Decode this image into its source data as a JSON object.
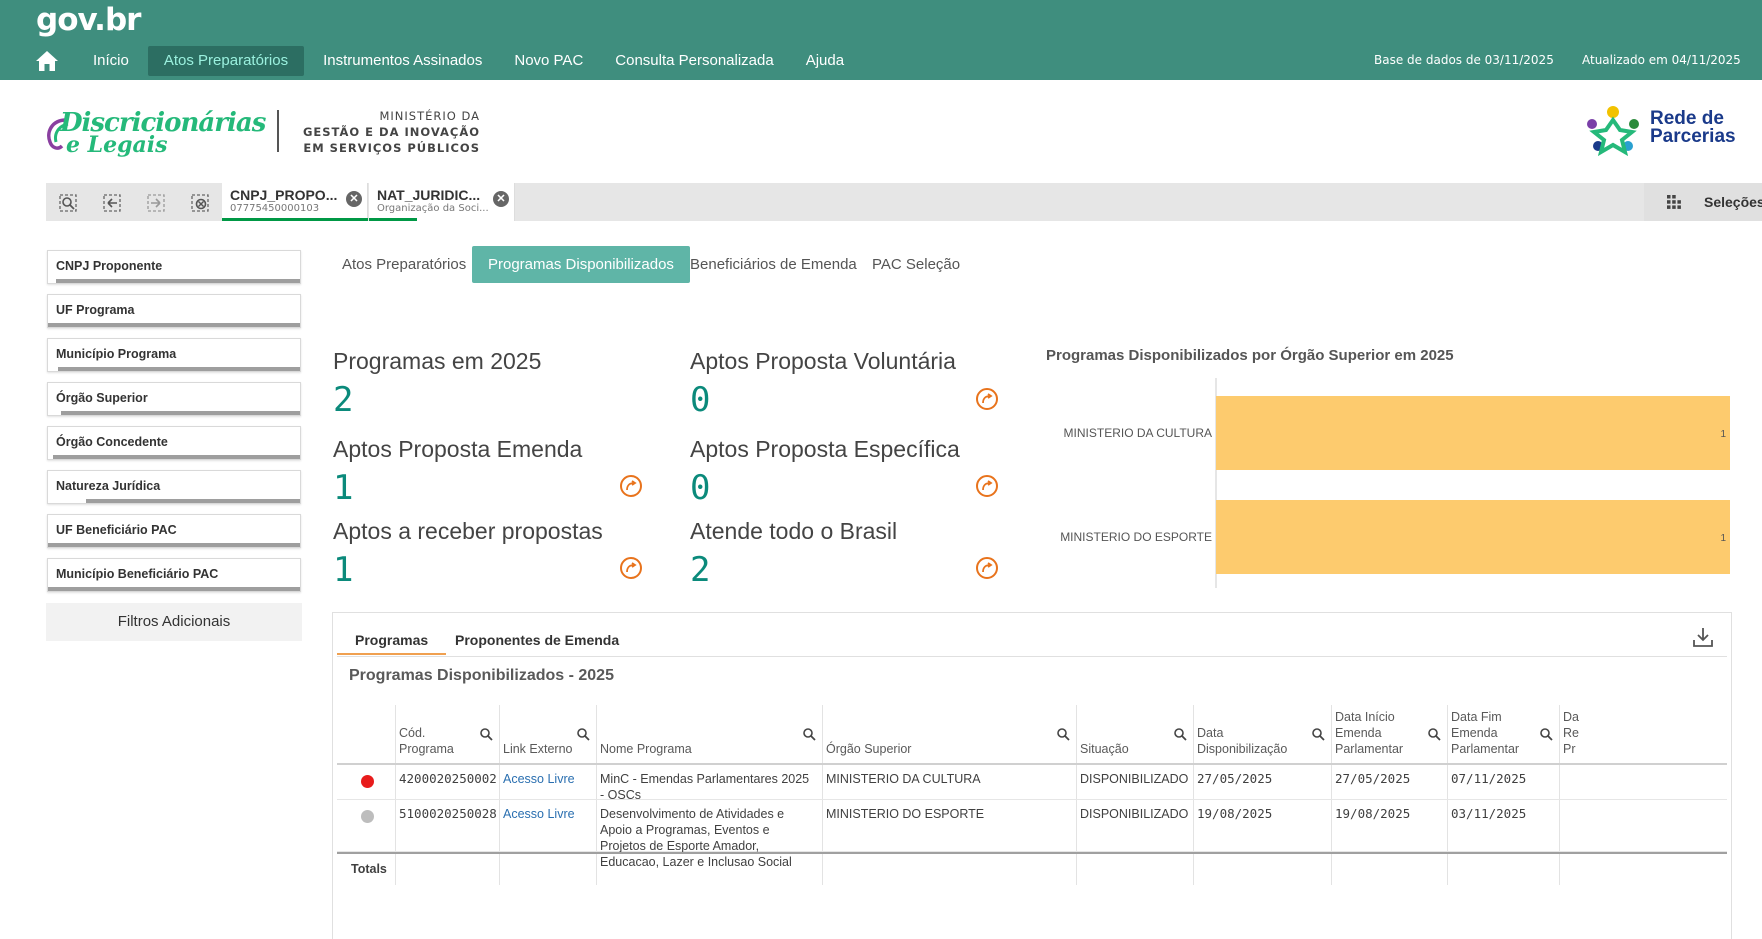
{
  "topbar": {
    "brand": "gov.br",
    "nav": [
      "Início",
      "Atos Preparatórios",
      "Instrumentos Assinados",
      "Novo PAC",
      "Consulta Personalizada",
      "Ajuda"
    ],
    "active_nav": 1,
    "db_date": "Base de dados de 03/11/2025",
    "updated": "Atualizado em 04/11/2025"
  },
  "header": {
    "logo_line1": "Discricionárias",
    "logo_line2": "e Legais",
    "ministry_line1": "MINISTÉRIO DA",
    "ministry_line2": "GESTÃO E DA INOVAÇÃO",
    "ministry_line3": "EM SERVIÇOS PÚBLICOS",
    "partner_line1": "Rede de",
    "partner_line2": "Parcerias"
  },
  "selection_bar": {
    "chips": [
      {
        "title": "CNPJ_PROPO...",
        "sub": "07775450000103"
      },
      {
        "title": "NAT_JURIDIC...",
        "sub": "Organização da Soci..."
      }
    ],
    "selections_label": "Seleções"
  },
  "filters": {
    "items": [
      {
        "label": "CNPJ Proponente",
        "fill": 0.03
      },
      {
        "label": "UF Programa",
        "fill": 0
      },
      {
        "label": "Município Programa",
        "fill": 0.04
      },
      {
        "label": "Órgão Superior",
        "fill": 0.05
      },
      {
        "label": "Órgão Concedente",
        "fill": 0.02
      },
      {
        "label": "Natureza Jurídica",
        "fill": 0.15
      },
      {
        "label": "UF Beneficiário PAC",
        "fill": 0
      },
      {
        "label": "Município Beneficiário PAC",
        "fill": 0
      }
    ],
    "more_label": "Filtros Adicionais"
  },
  "tabs": [
    "Atos Preparatórios",
    "Programas Disponibilizados",
    "Beneficiários de Emenda",
    "PAC Seleção"
  ],
  "active_tab": 1,
  "kpis": {
    "programs_label": "Programas em 2025",
    "programs_value": "2",
    "voluntaria_label": "Aptos Proposta Voluntária",
    "voluntaria_value": "0",
    "emenda_label": "Aptos Proposta Emenda",
    "emenda_value": "1",
    "especifica_label": "Aptos Proposta Específica",
    "especifica_value": "0",
    "receber_label": "Aptos a receber propostas",
    "receber_value": "1",
    "brasil_label": "Atende todo o Brasil",
    "brasil_value": "2"
  },
  "colors": {
    "topbar": "#3f8e7e",
    "kpi_value": "#0b8a7b",
    "kpi_link": "#e8731c",
    "bar": "#fdcb6e",
    "tab_active": "#5fb5a7"
  },
  "chart_data": {
    "type": "bar",
    "orientation": "horizontal",
    "title": "Programas Disponibilizados por Órgão Superior em 2025",
    "categories": [
      "MINISTERIO DA CULTURA",
      "MINISTERIO DO ESPORTE"
    ],
    "values": [
      1,
      1
    ],
    "xlim": [
      0,
      1
    ],
    "grid": false,
    "legend": "none"
  },
  "panel": {
    "tabs": [
      "Programas",
      "Proponentes de Emenda"
    ],
    "active_tab": 0,
    "title": "Programas Disponibilizados - 2025",
    "columns": [
      "Cód. Programa",
      "Link Externo",
      "Nome Programa",
      "Órgão Superior",
      "Situação",
      "Data Disponibilização",
      "Data Início Emenda Parlamentar",
      "Data Fim Emenda Parlamentar",
      "Da Re Pr"
    ],
    "rows": [
      {
        "status": "red",
        "codigo": "4200020250002",
        "link": "Acesso Livre",
        "nome": "MinC - Emendas Parlamentares 2025 - OSCs",
        "orgao": "MINISTERIO DA CULTURA",
        "situacao": "DISPONIBILIZADO",
        "data_disp": "27/05/2025",
        "data_ini": "27/05/2025",
        "data_fim": "07/11/2025"
      },
      {
        "status": "grey",
        "codigo": "5100020250028",
        "link": "Acesso Livre",
        "nome": "Desenvolvimento de Atividades e Apoio a Programas, Eventos e Projetos de Esporte Amador, Educacao, Lazer e Inclusao Social",
        "orgao": "MINISTERIO DO ESPORTE",
        "situacao": "DISPONIBILIZADO",
        "data_disp": "19/08/2025",
        "data_ini": "19/08/2025",
        "data_fim": "03/11/2025"
      }
    ],
    "totals_label": "Totals"
  }
}
